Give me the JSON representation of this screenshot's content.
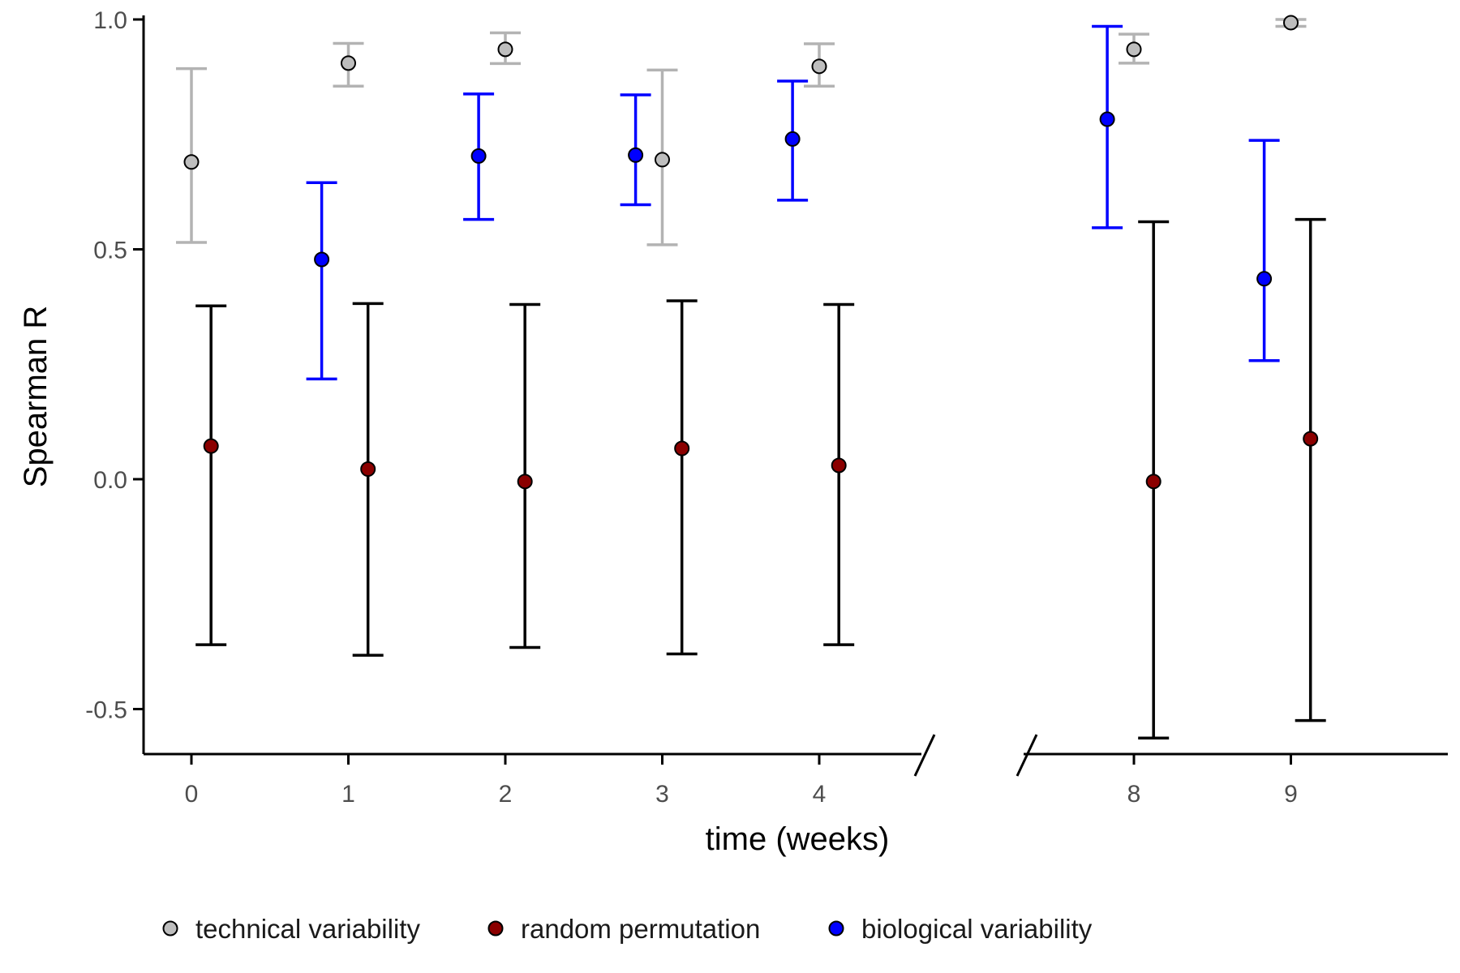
{
  "chart_data": {
    "type": "scatter",
    "subtype": "point-with-error-bars",
    "title": "",
    "xlabel": "time (weeks)",
    "ylabel": "Spearman R",
    "ylim": [
      -0.58,
      1.0
    ],
    "yticks": [
      1.0,
      0.5,
      0.0,
      -0.5
    ],
    "ytick_labels": [
      "1.0",
      "0.5",
      "0.0",
      "-0.5"
    ],
    "x_axis_break": {
      "after": 4,
      "before": 8
    },
    "xticks": [
      0,
      1,
      2,
      3,
      4,
      8,
      9
    ],
    "xtick_labels": [
      "0",
      "1",
      "2",
      "3",
      "4",
      "8",
      "9"
    ],
    "grid": false,
    "legend_position": "bottom",
    "series": [
      {
        "name": "technical variability",
        "color": "#bebebe",
        "errorbar_color": "#b3b3b3",
        "offset": 0,
        "points": [
          {
            "x": 0,
            "y": 0.69,
            "lower": 0.515,
            "upper": 0.893
          },
          {
            "x": 1,
            "y": 0.905,
            "lower": 0.855,
            "upper": 0.948
          },
          {
            "x": 2,
            "y": 0.935,
            "lower": 0.904,
            "upper": 0.971
          },
          {
            "x": 3,
            "y": 0.695,
            "lower": 0.51,
            "upper": 0.89
          },
          {
            "x": 4,
            "y": 0.898,
            "lower": 0.855,
            "upper": 0.947
          },
          {
            "x": 8,
            "y": 0.935,
            "lower": 0.905,
            "upper": 0.968
          },
          {
            "x": 9,
            "y": 0.993,
            "lower": 0.985,
            "upper": 1.0
          }
        ]
      },
      {
        "name": "random permutation",
        "color": "#8b0000",
        "errorbar_color": "#000000",
        "offset": 0.125,
        "points": [
          {
            "x": 0,
            "y": 0.072,
            "lower": -0.36,
            "upper": 0.377
          },
          {
            "x": 1,
            "y": 0.022,
            "lower": -0.383,
            "upper": 0.382
          },
          {
            "x": 2,
            "y": -0.005,
            "lower": -0.366,
            "upper": 0.38
          },
          {
            "x": 3,
            "y": 0.067,
            "lower": -0.38,
            "upper": 0.388
          },
          {
            "x": 4,
            "y": 0.03,
            "lower": -0.36,
            "upper": 0.38
          },
          {
            "x": 8,
            "y": -0.005,
            "lower": -0.563,
            "upper": 0.56
          },
          {
            "x": 9,
            "y": 0.088,
            "lower": -0.525,
            "upper": 0.565
          }
        ]
      },
      {
        "name": "biological variability",
        "color": "#0000ff",
        "errorbar_color": "#0000ff",
        "offset": -0.17,
        "points": [
          {
            "x": 0,
            "y": null,
            "lower": null,
            "upper": null
          },
          {
            "x": 1,
            "y": 0.478,
            "lower": 0.218,
            "upper": 0.645
          },
          {
            "x": 2,
            "y": 0.703,
            "lower": 0.565,
            "upper": 0.838
          },
          {
            "x": 3,
            "y": 0.705,
            "lower": 0.597,
            "upper": 0.836
          },
          {
            "x": 4,
            "y": 0.74,
            "lower": 0.607,
            "upper": 0.866
          },
          {
            "x": 8,
            "y": 0.783,
            "lower": 0.547,
            "upper": 0.985
          },
          {
            "x": 9,
            "y": 0.436,
            "lower": 0.258,
            "upper": 0.737
          }
        ]
      }
    ],
    "legend": {
      "entries": [
        "technical variability",
        "random permutation",
        "biological variability"
      ]
    }
  }
}
